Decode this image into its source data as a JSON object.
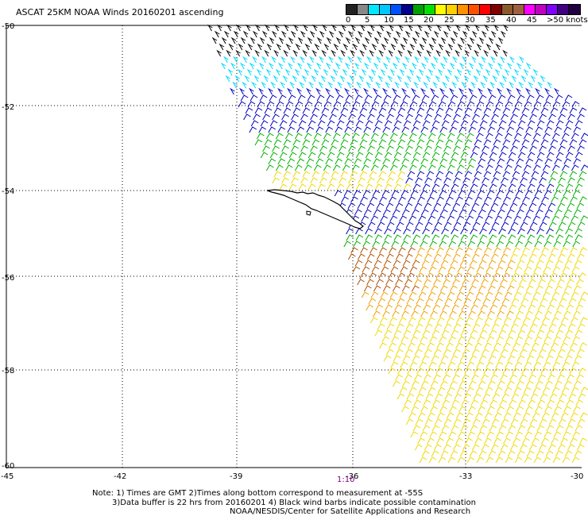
{
  "title": "ASCAT 25KM NOAA Winds 20160201  ascending",
  "legend": {
    "colors": [
      "#222222",
      "#888888",
      "#00e8ff",
      "#00c8ff",
      "#0050ff",
      "#00008c",
      "#00a000",
      "#00e000",
      "#ffff00",
      "#ffd000",
      "#ff9000",
      "#ff5000",
      "#ff0000",
      "#800000",
      "#8b5a2b",
      "#a06040",
      "#ff00ff",
      "#c000c0",
      "#8000ff",
      "#400080",
      "#200040"
    ],
    "labels": [
      "0",
      "5",
      "10",
      "15",
      "20",
      "25",
      "30",
      "35",
      "40",
      "45",
      ">50 knots"
    ]
  },
  "axes": {
    "lon_labels": [
      "-45",
      "-42",
      "-39",
      "-36",
      "-33",
      "-30"
    ],
    "lat_labels": [
      "-50",
      "-52",
      "-54",
      "-56",
      "-58",
      "-60"
    ]
  },
  "time_label": "1:10",
  "notes": [
    "Note: 1) Times are GMT 2)Times along bottom correspond to measurement at -55S",
    "3)Data buffer is 22 hrs from 20160201 4) Black wind barbs indicate possible contamination",
    "NOAA/NESDIS/Center for Satellite Applications and Research"
  ],
  "wind_colors": {
    "black": "#000000",
    "cyan": "#00d8ff",
    "blue": "#0000c0",
    "green": "#00b000",
    "yellow": "#f0d800",
    "brown": "#b05000",
    "orange": "#f0a000"
  }
}
